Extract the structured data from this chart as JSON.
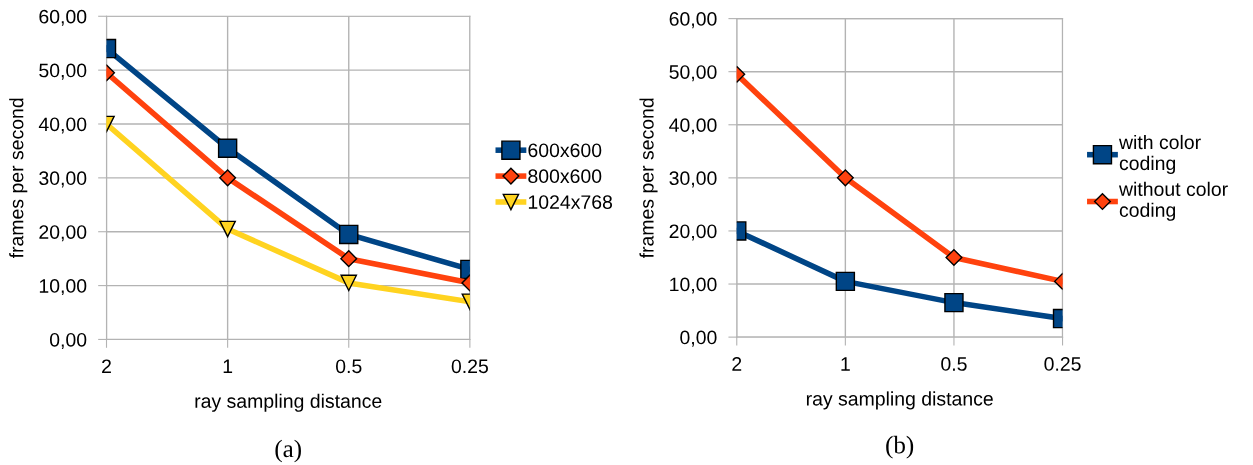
{
  "chart_data": [
    {
      "type": "line",
      "xlabel": "ray sampling distance",
      "ylabel": "frames per second",
      "categories": [
        "2",
        "1",
        "0.5",
        "0.25"
      ],
      "series": [
        {
          "name": "600x600",
          "color": "#004586",
          "marker": "square",
          "values": [
            54,
            35.5,
            19.5,
            13
          ]
        },
        {
          "name": "800x600",
          "color": "#ff420e",
          "marker": "diamond",
          "values": [
            49.5,
            30,
            15,
            10.5
          ]
        },
        {
          "name": "1024x768",
          "color": "#ffd320",
          "marker": "triangle",
          "values": [
            40,
            20.5,
            10.5,
            7
          ]
        }
      ],
      "ylim": [
        0,
        60
      ],
      "yticks": [
        {
          "value": 0,
          "label": "0,00"
        },
        {
          "value": 10,
          "label": "10,00"
        },
        {
          "value": 20,
          "label": "20,00"
        },
        {
          "value": 30,
          "label": "30,00"
        },
        {
          "value": 40,
          "label": "40,00"
        },
        {
          "value": 50,
          "label": "50,00"
        },
        {
          "value": 60,
          "label": "60,00"
        }
      ],
      "grid": true,
      "legend": "right",
      "annotations": [
        "(a)"
      ]
    },
    {
      "type": "line",
      "xlabel": "ray sampling distance",
      "ylabel": "frames per second",
      "categories": [
        "2",
        "1",
        "0.5",
        "0.25"
      ],
      "series": [
        {
          "name": "with color\ncoding",
          "color": "#004586",
          "marker": "square",
          "values": [
            20,
            10.5,
            6.5,
            3.5
          ]
        },
        {
          "name": "without color\ncoding",
          "color": "#ff420e",
          "marker": "diamond",
          "values": [
            49.5,
            30,
            15,
            10.5
          ]
        }
      ],
      "ylim": [
        0,
        60
      ],
      "yticks": [
        {
          "value": 0,
          "label": "0,00"
        },
        {
          "value": 10,
          "label": "10,00"
        },
        {
          "value": 20,
          "label": "20,00"
        },
        {
          "value": 30,
          "label": "30,00"
        },
        {
          "value": 40,
          "label": "40,00"
        },
        {
          "value": 50,
          "label": "50,00"
        },
        {
          "value": 60,
          "label": "60,00"
        }
      ],
      "grid": true,
      "legend": "right",
      "annotations": [
        "(b)"
      ]
    }
  ]
}
